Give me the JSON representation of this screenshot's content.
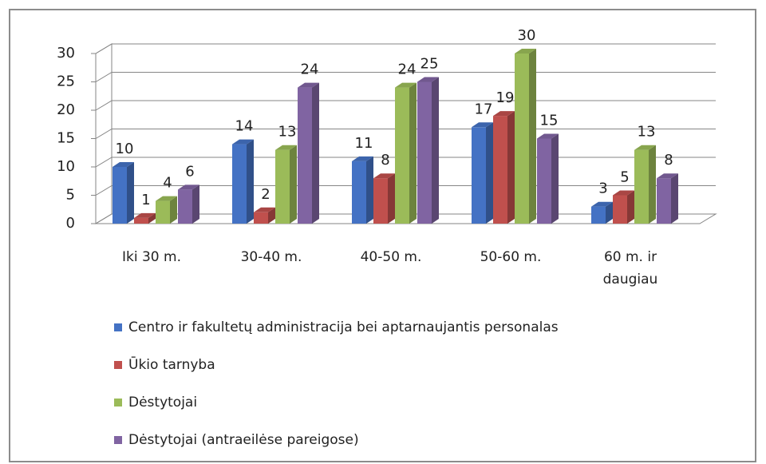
{
  "chart_data": {
    "type": "bar3d",
    "categories": [
      "Iki 30 m.",
      "30-40 m.",
      "40-50 m.",
      "50-60 m.",
      "60 m. ir daugiau"
    ],
    "series": [
      {
        "name": "Centro ir fakultetų administracija bei aptarnaujantis personalas",
        "color": "#4472c4",
        "values": [
          10,
          14,
          11,
          17,
          3
        ]
      },
      {
        "name": "Ūkio tarnyba",
        "color": "#c0504d",
        "values": [
          1,
          2,
          8,
          19,
          5
        ]
      },
      {
        "name": "Dėstytojai",
        "color": "#9bbb59",
        "values": [
          4,
          13,
          24,
          30,
          13
        ]
      },
      {
        "name": "Dėstytojai (antraeilėse pareigose)",
        "color": "#8064a2",
        "values": [
          6,
          24,
          25,
          15,
          8
        ]
      }
    ],
    "ylim": [
      0,
      30
    ],
    "yticks": [
      0,
      5,
      10,
      15,
      20,
      25,
      30
    ],
    "grid": true,
    "legend": "bottom"
  }
}
